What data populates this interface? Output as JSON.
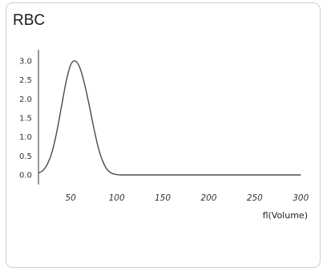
{
  "card": {
    "title": "RBC"
  },
  "chart_data": {
    "type": "line",
    "title": "RBC",
    "xlabel": "fl(Volume)",
    "ylabel": "",
    "xlim": [
      15,
      305
    ],
    "ylim": [
      0,
      3.0
    ],
    "x_ticks": [
      "50",
      "100",
      "150",
      "200",
      "250",
      "300"
    ],
    "y_ticks": [
      "0.0",
      "0.5",
      "1.0",
      "1.5",
      "2.0",
      "2.5",
      "3.0"
    ],
    "grid": false,
    "legend": "none",
    "line_color": "#4a4a4a",
    "series": [
      {
        "x": [
          15,
          20,
          25,
          30,
          35,
          40,
          45,
          50,
          55,
          60,
          65,
          70,
          75,
          80,
          85,
          90,
          95,
          100,
          105,
          110,
          115,
          120,
          150,
          200,
          250,
          300
        ],
        "values": [
          0.05,
          0.12,
          0.3,
          0.62,
          1.15,
          1.8,
          2.45,
          2.9,
          3.0,
          2.82,
          2.4,
          1.85,
          1.25,
          0.72,
          0.35,
          0.13,
          0.04,
          0.01,
          0.0,
          0.0,
          0.0,
          0.0,
          0.0,
          0.0,
          0.0,
          0.0
        ]
      }
    ]
  }
}
